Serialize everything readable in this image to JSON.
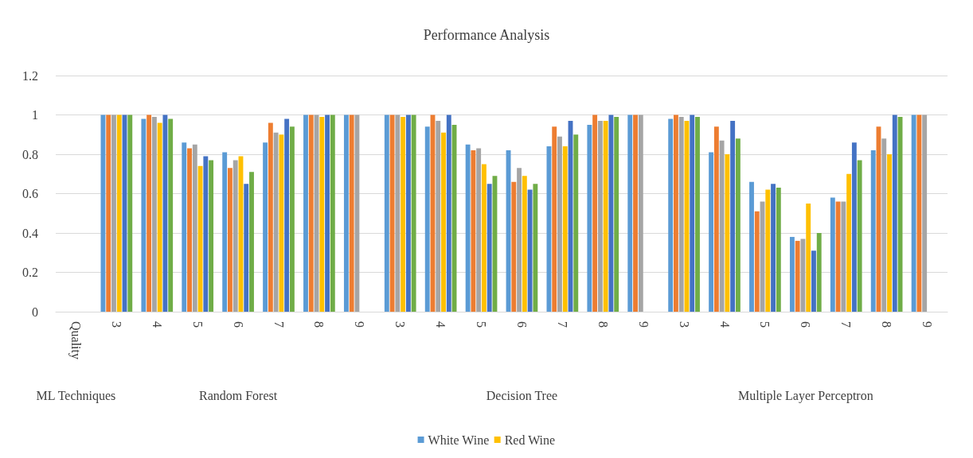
{
  "chart_data": {
    "type": "bar",
    "title": "Performance Analysis",
    "categories": [
      "Quality",
      "3",
      "4",
      "5",
      "6",
      "7",
      "8",
      "9",
      "3",
      "4",
      "5",
      "6",
      "7",
      "8",
      "9",
      "3",
      "4",
      "5",
      "6",
      "7",
      "8",
      "9"
    ],
    "annotations": [
      "ML Techniques",
      "Random Forest",
      "Decision Tree",
      "Multiple Layer Perceptron"
    ],
    "series": [
      {
        "name": "White Wine",
        "color": "#5b9bd5",
        "values": [
          null,
          1,
          0.98,
          0.86,
          0.81,
          0.86,
          1,
          1,
          1,
          0.94,
          0.85,
          0.82,
          0.84,
          0.95,
          1,
          0.98,
          0.81,
          0.66,
          0.38,
          0.58,
          0.82,
          1
        ]
      },
      {
        "color": "#ed7d31",
        "values": [
          null,
          1,
          1,
          0.83,
          0.73,
          0.96,
          1,
          1,
          1,
          1,
          0.82,
          0.66,
          0.94,
          1,
          1,
          1,
          0.94,
          0.51,
          0.36,
          0.56,
          0.94,
          1
        ]
      },
      {
        "color": "#a5a5a5",
        "values": [
          null,
          1,
          0.99,
          0.85,
          0.77,
          0.91,
          1,
          1,
          1,
          0.97,
          0.83,
          0.73,
          0.89,
          0.97,
          1,
          0.99,
          0.87,
          0.56,
          0.37,
          0.56,
          0.88,
          1
        ]
      },
      {
        "name": "Red Wine",
        "color": "#ffc000",
        "values": [
          null,
          1,
          0.96,
          0.74,
          0.79,
          0.9,
          0.99,
          null,
          0.99,
          0.91,
          0.75,
          0.69,
          0.84,
          0.97,
          null,
          0.97,
          0.8,
          0.62,
          0.55,
          0.7,
          0.8,
          null
        ]
      },
      {
        "color": "#4472c4",
        "values": [
          null,
          1,
          1,
          0.79,
          0.65,
          0.98,
          1,
          null,
          1,
          1,
          0.65,
          0.62,
          0.97,
          1,
          null,
          1,
          0.97,
          0.65,
          0.31,
          0.86,
          1,
          null
        ]
      },
      {
        "color": "#70ad47",
        "values": [
          null,
          1,
          0.98,
          0.77,
          0.71,
          0.94,
          1,
          null,
          1,
          0.95,
          0.69,
          0.65,
          0.9,
          0.99,
          null,
          0.99,
          0.88,
          0.63,
          0.4,
          0.77,
          0.99,
          null
        ]
      }
    ],
    "ylim": [
      0,
      1.2
    ],
    "yticks": [
      0,
      0.2,
      0.4,
      0.6,
      0.8,
      1,
      1.2
    ],
    "grid": true,
    "legend": "bottom"
  }
}
